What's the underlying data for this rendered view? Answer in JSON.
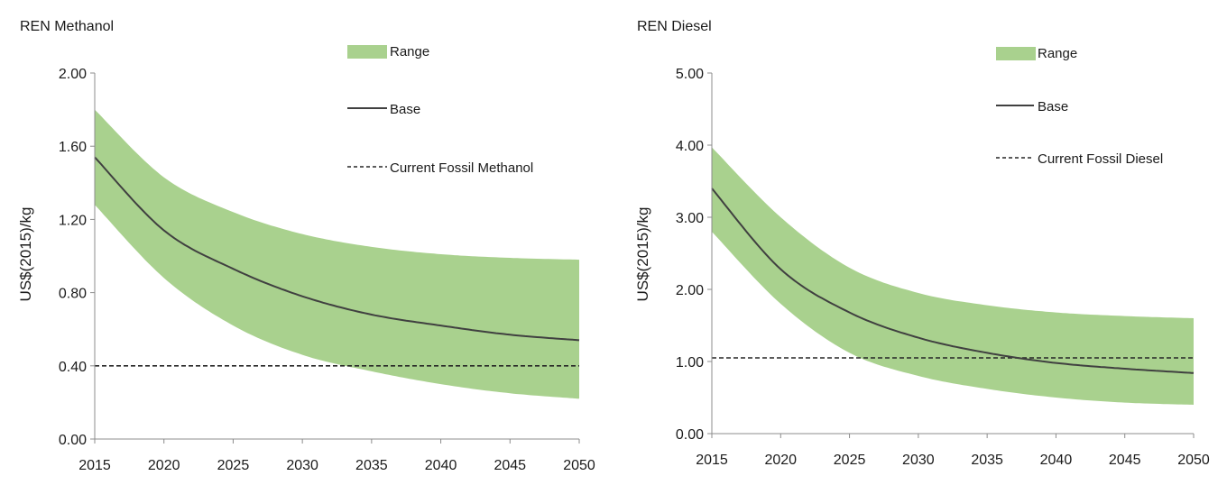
{
  "chart_data": [
    {
      "type": "area",
      "title": "REN Methanol",
      "ylabel": "US$(2015)/kg",
      "xlabel": "",
      "x": [
        2015,
        2020,
        2025,
        2030,
        2035,
        2040,
        2045,
        2050
      ],
      "xlim": [
        2015,
        2050
      ],
      "ylim": [
        0,
        2.0
      ],
      "yticks": [
        "0.00",
        "0.40",
        "0.80",
        "1.20",
        "1.60",
        "2.00"
      ],
      "xticks": [
        "2015",
        "2020",
        "2025",
        "2030",
        "2035",
        "2040",
        "2045",
        "2050"
      ],
      "grid": false,
      "legend_position": "top-right",
      "series": [
        {
          "name": "Range",
          "kind": "band",
          "color": "#a9d18e",
          "lower": [
            1.28,
            0.88,
            0.62,
            0.46,
            0.37,
            0.3,
            0.25,
            0.22
          ],
          "upper": [
            1.8,
            1.43,
            1.24,
            1.12,
            1.05,
            1.01,
            0.99,
            0.98
          ]
        },
        {
          "name": "Base",
          "kind": "line",
          "color": "#404040",
          "values": [
            1.54,
            1.14,
            0.93,
            0.78,
            0.68,
            0.62,
            0.57,
            0.54
          ]
        },
        {
          "name": "Current Fossil Methanol",
          "kind": "dashed",
          "color": "#262626",
          "values": [
            0.4,
            0.4,
            0.4,
            0.4,
            0.4,
            0.4,
            0.4,
            0.4
          ]
        }
      ]
    },
    {
      "type": "area",
      "title": "REN Diesel",
      "ylabel": "US$(2015)/kg",
      "xlabel": "",
      "x": [
        2015,
        2020,
        2025,
        2030,
        2035,
        2040,
        2045,
        2050
      ],
      "xlim": [
        2015,
        2050
      ],
      "ylim": [
        0,
        5.0
      ],
      "yticks": [
        "0.00",
        "1.00",
        "2.00",
        "3.00",
        "4.00",
        "5.00"
      ],
      "xticks": [
        "2015",
        "2020",
        "2025",
        "2030",
        "2035",
        "2040",
        "2045",
        "2050"
      ],
      "grid": false,
      "legend_position": "top-right",
      "series": [
        {
          "name": "Range",
          "kind": "band",
          "color": "#a9d18e",
          "lower": [
            2.8,
            1.8,
            1.12,
            0.8,
            0.62,
            0.5,
            0.43,
            0.4
          ],
          "upper": [
            3.97,
            3.0,
            2.3,
            1.95,
            1.78,
            1.68,
            1.63,
            1.6
          ]
        },
        {
          "name": "Base",
          "kind": "line",
          "color": "#404040",
          "values": [
            3.4,
            2.28,
            1.68,
            1.33,
            1.12,
            0.98,
            0.9,
            0.84
          ]
        },
        {
          "name": "Current Fossil Diesel",
          "kind": "dashed",
          "color": "#262626",
          "values": [
            1.05,
            1.05,
            1.05,
            1.05,
            1.05,
            1.05,
            1.05,
            1.05
          ]
        }
      ]
    }
  ]
}
